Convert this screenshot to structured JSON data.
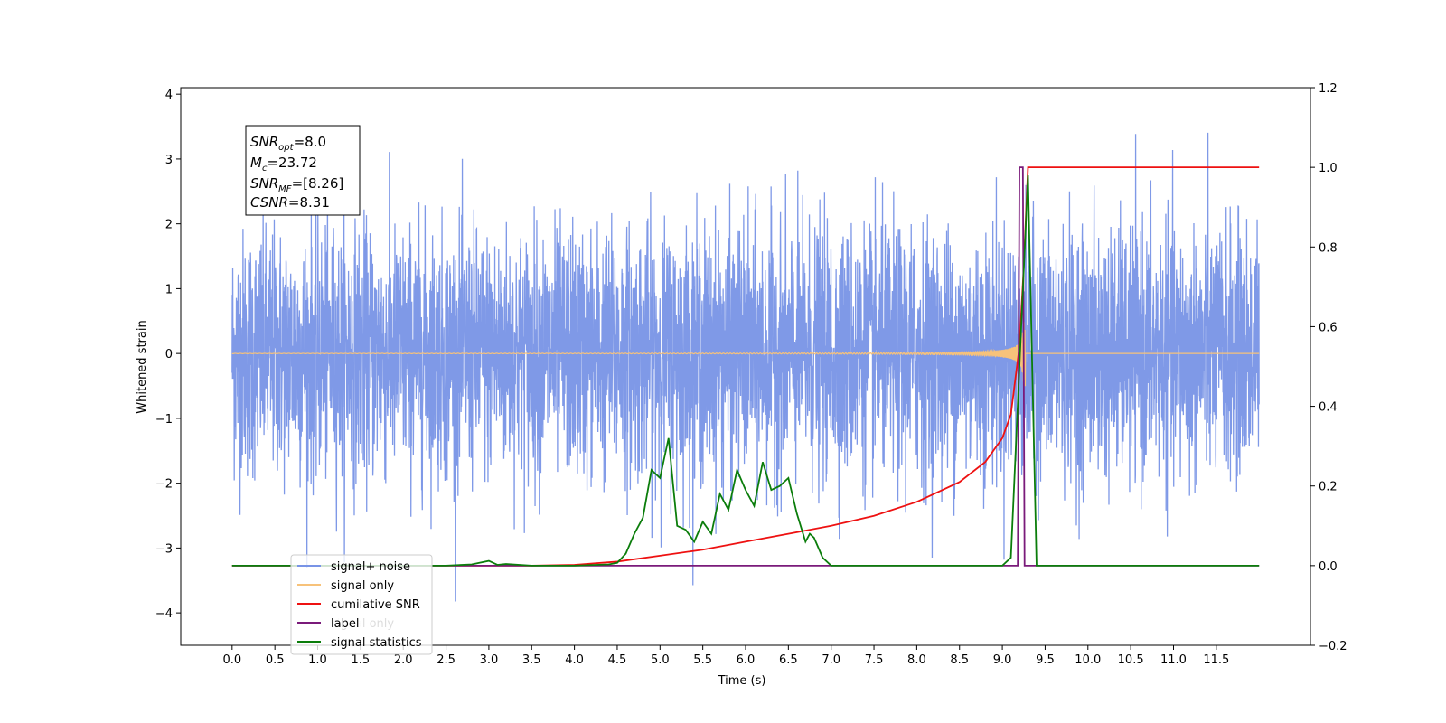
{
  "chart_data": {
    "type": "line",
    "xlabel": "Time (s)",
    "ylabel": "Whitened strain",
    "xlim": [
      -0.6,
      12.6
    ],
    "ylim": [
      -4.5,
      4.1
    ],
    "y2lim": [
      -0.2,
      1.2
    ],
    "x_ticks": [
      "0.0",
      "0.5",
      "1.0",
      "1.5",
      "2.0",
      "2.5",
      "3.0",
      "3.5",
      "4.0",
      "4.5",
      "5.0",
      "5.5",
      "6.0",
      "6.5",
      "7.0",
      "7.5",
      "8.0",
      "8.5",
      "9.0",
      "9.5",
      "10.0",
      "10.5",
      "11.0",
      "11.5"
    ],
    "y_ticks": [
      "4",
      "3",
      "2",
      "1",
      "0",
      "−1",
      "−2",
      "−3",
      "−4"
    ],
    "y2_ticks": [
      "1.2",
      "1.0",
      "0.8",
      "0.6",
      "0.4",
      "0.2",
      "0.0",
      "−0.2"
    ],
    "annotation": {
      "snr_opt": {
        "name": "SNR",
        "sub": "opt",
        "value": "=8.0"
      },
      "mc": {
        "name": "M",
        "sub": "c",
        "value": "=23.72"
      },
      "snr_mf": {
        "name": "SNR",
        "sub": "MF",
        "value": "=[8.26]"
      },
      "csnr": {
        "name": "CSNR",
        "value": "=8.31"
      }
    },
    "legend": {
      "placement": "lower-left",
      "entries": [
        "signal+ noise",
        "signal only",
        "cumilative SNR",
        "label",
        "signal statistics"
      ],
      "hidden_text": "signal only"
    },
    "colors": {
      "signal_noise": "#7893e6",
      "signal_only": "#f7c27a",
      "cumulative_snr": "#ee1111",
      "label": "#7a1a7a",
      "signal_statistics": "#0b7d0b"
    },
    "series": [
      {
        "name": "signal+ noise",
        "axis": "left",
        "description_range": [
          -3.9,
          3.7
        ],
        "x_range": [
          0.0,
          12.0
        ]
      },
      {
        "name": "signal only",
        "axis": "left",
        "merger_time": 9.27,
        "peak_amplitude": 0.55
      },
      {
        "name": "cumilative SNR",
        "axis": "right",
        "x": [
          0.0,
          3.5,
          4.0,
          4.5,
          5.0,
          5.5,
          6.0,
          6.5,
          7.0,
          7.5,
          8.0,
          8.5,
          8.8,
          9.0,
          9.1,
          9.2,
          9.25,
          9.3,
          12.0
        ],
        "values": [
          0.0,
          0.0,
          0.002,
          0.01,
          0.025,
          0.04,
          0.06,
          0.08,
          0.1,
          0.125,
          0.16,
          0.21,
          0.26,
          0.32,
          0.38,
          0.55,
          0.75,
          1.0,
          1.0
        ]
      },
      {
        "name": "label",
        "axis": "right",
        "x": [
          0.0,
          9.15,
          9.18,
          9.2,
          9.22,
          9.24,
          9.26,
          9.28,
          12.0
        ],
        "values": [
          0.0,
          0.0,
          0.0,
          1.0,
          1.0,
          1.0,
          0.0,
          0.0,
          0.0
        ]
      },
      {
        "name": "signal statistics",
        "axis": "right",
        "x": [
          0.0,
          2.5,
          2.8,
          3.0,
          3.1,
          3.2,
          3.5,
          4.0,
          4.4,
          4.5,
          4.6,
          4.7,
          4.8,
          4.9,
          5.0,
          5.1,
          5.2,
          5.3,
          5.4,
          5.5,
          5.6,
          5.7,
          5.8,
          5.9,
          6.0,
          6.1,
          6.2,
          6.3,
          6.4,
          6.5,
          6.6,
          6.7,
          6.75,
          6.8,
          6.9,
          7.0,
          8.0,
          9.0,
          9.1,
          9.2,
          9.3,
          9.4,
          9.5,
          12.0
        ],
        "values": [
          0.0,
          0.0,
          0.003,
          0.012,
          0.002,
          0.004,
          0.0,
          0.0,
          0.003,
          0.007,
          0.03,
          0.08,
          0.12,
          0.24,
          0.22,
          0.32,
          0.1,
          0.09,
          0.06,
          0.11,
          0.08,
          0.18,
          0.14,
          0.24,
          0.19,
          0.15,
          0.26,
          0.19,
          0.2,
          0.22,
          0.13,
          0.06,
          0.08,
          0.07,
          0.02,
          0.0,
          0.0,
          0.0,
          0.02,
          0.5,
          0.98,
          0.0,
          0.0,
          0.0
        ]
      }
    ]
  }
}
